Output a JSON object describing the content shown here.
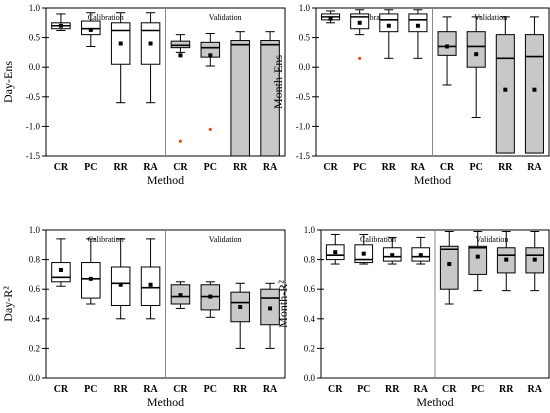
{
  "chart_data": [
    {
      "type": "box",
      "ylabel": "Day-Ens",
      "xlabel": "Method",
      "ylim": [
        -1.5,
        1.0
      ],
      "yticks": [
        -1.5,
        -1.0,
        -0.5,
        0.0,
        0.5,
        1.0
      ],
      "group_labels": [
        "Calibration",
        "Validation"
      ],
      "categories": [
        "CR",
        "PC",
        "RR",
        "RA",
        "CR",
        "PC",
        "RR",
        "RA"
      ],
      "boxes": [
        {
          "group": "Calibration",
          "category": "CR",
          "min": 0.62,
          "q1": 0.65,
          "median": 0.7,
          "q3": 0.75,
          "max": 0.9,
          "mean": 0.7,
          "outliers": []
        },
        {
          "group": "Calibration",
          "category": "PC",
          "min": 0.35,
          "q1": 0.55,
          "median": 0.65,
          "q3": 0.78,
          "max": 0.92,
          "mean": 0.63,
          "outliers": []
        },
        {
          "group": "Calibration",
          "category": "RR",
          "min": -0.6,
          "q1": 0.05,
          "median": 0.62,
          "q3": 0.75,
          "max": 0.92,
          "mean": 0.4,
          "outliers": []
        },
        {
          "group": "Calibration",
          "category": "RA",
          "min": -0.6,
          "q1": 0.05,
          "median": 0.62,
          "q3": 0.75,
          "max": 0.92,
          "mean": 0.4,
          "outliers": []
        },
        {
          "group": "Validation",
          "category": "CR",
          "min": 0.25,
          "q1": 0.33,
          "median": 0.37,
          "q3": 0.44,
          "max": 0.55,
          "mean": 0.2,
          "outliers": [
            -1.25
          ]
        },
        {
          "group": "Validation",
          "category": "PC",
          "min": 0.02,
          "q1": 0.17,
          "median": 0.33,
          "q3": 0.42,
          "max": 0.57,
          "mean": 0.2,
          "outliers": [
            -1.05
          ]
        },
        {
          "group": "Validation",
          "category": "RR",
          "min": -1.5,
          "q1": -1.5,
          "median": 0.38,
          "q3": 0.45,
          "max": 0.6,
          "mean": null,
          "outliers": []
        },
        {
          "group": "Validation",
          "category": "RA",
          "min": -1.5,
          "q1": -1.5,
          "median": 0.38,
          "q3": 0.45,
          "max": 0.6,
          "mean": null,
          "outliers": []
        }
      ]
    },
    {
      "type": "box",
      "ylabel": "Month-Ens",
      "xlabel": "Method",
      "ylim": [
        -1.5,
        1.0
      ],
      "yticks": [
        -1.5,
        -1.0,
        -0.5,
        0.0,
        0.5,
        1.0
      ],
      "group_labels": [
        "Calibration",
        "Validation"
      ],
      "categories": [
        "CR",
        "PC",
        "RR",
        "RA",
        "CR",
        "PC",
        "RR",
        "RA"
      ],
      "boxes": [
        {
          "group": "Calibration",
          "category": "CR",
          "min": 0.75,
          "q1": 0.8,
          "median": 0.85,
          "q3": 0.9,
          "max": 0.95,
          "mean": 0.82,
          "outliers": []
        },
        {
          "group": "Calibration",
          "category": "PC",
          "min": 0.55,
          "q1": 0.65,
          "median": 0.85,
          "q3": 0.9,
          "max": 0.97,
          "mean": 0.75,
          "outliers": [
            0.15
          ]
        },
        {
          "group": "Calibration",
          "category": "RR",
          "min": 0.15,
          "q1": 0.6,
          "median": 0.8,
          "q3": 0.9,
          "max": 0.97,
          "mean": 0.7,
          "outliers": []
        },
        {
          "group": "Calibration",
          "category": "RA",
          "min": 0.15,
          "q1": 0.6,
          "median": 0.8,
          "q3": 0.9,
          "max": 0.97,
          "mean": 0.7,
          "outliers": []
        },
        {
          "group": "Validation",
          "category": "CR",
          "min": -0.3,
          "q1": 0.2,
          "median": 0.35,
          "q3": 0.6,
          "max": 0.85,
          "mean": 0.35,
          "outliers": []
        },
        {
          "group": "Validation",
          "category": "PC",
          "min": -0.85,
          "q1": 0.0,
          "median": 0.35,
          "q3": 0.6,
          "max": 0.85,
          "mean": 0.22,
          "outliers": []
        },
        {
          "group": "Validation",
          "category": "RR",
          "min": -1.45,
          "q1": -1.45,
          "median": 0.15,
          "q3": 0.55,
          "max": 0.85,
          "mean": -0.38,
          "outliers": []
        },
        {
          "group": "Validation",
          "category": "RA",
          "min": -1.45,
          "q1": -1.45,
          "median": 0.18,
          "q3": 0.55,
          "max": 0.85,
          "mean": -0.38,
          "outliers": []
        }
      ]
    },
    {
      "type": "box",
      "ylabel": "Day-R²",
      "xlabel": "Method",
      "ylim": [
        0.0,
        1.0
      ],
      "yticks": [
        0.0,
        0.2,
        0.4,
        0.6,
        0.8,
        1.0
      ],
      "group_labels": [
        "Calibration",
        "Validation"
      ],
      "categories": [
        "CR",
        "PC",
        "RR",
        "RA",
        "CR",
        "PC",
        "RR",
        "RA"
      ],
      "boxes": [
        {
          "group": "Calibration",
          "category": "CR",
          "min": 0.62,
          "q1": 0.65,
          "median": 0.68,
          "q3": 0.78,
          "max": 0.94,
          "mean": 0.73,
          "outliers": []
        },
        {
          "group": "Calibration",
          "category": "PC",
          "min": 0.5,
          "q1": 0.54,
          "median": 0.67,
          "q3": 0.78,
          "max": 0.94,
          "mean": 0.67,
          "outliers": []
        },
        {
          "group": "Calibration",
          "category": "RR",
          "min": 0.4,
          "q1": 0.49,
          "median": 0.64,
          "q3": 0.75,
          "max": 0.94,
          "mean": 0.63,
          "outliers": []
        },
        {
          "group": "Calibration",
          "category": "RA",
          "min": 0.4,
          "q1": 0.49,
          "median": 0.61,
          "q3": 0.75,
          "max": 0.94,
          "mean": 0.63,
          "outliers": []
        },
        {
          "group": "Validation",
          "category": "CR",
          "min": 0.47,
          "q1": 0.5,
          "median": 0.55,
          "q3": 0.63,
          "max": 0.65,
          "mean": 0.56,
          "outliers": []
        },
        {
          "group": "Validation",
          "category": "PC",
          "min": 0.41,
          "q1": 0.46,
          "median": 0.55,
          "q3": 0.63,
          "max": 0.65,
          "mean": 0.55,
          "outliers": []
        },
        {
          "group": "Validation",
          "category": "RR",
          "min": 0.2,
          "q1": 0.38,
          "median": 0.51,
          "q3": 0.58,
          "max": 0.64,
          "mean": 0.48,
          "outliers": []
        },
        {
          "group": "Validation",
          "category": "RA",
          "min": 0.2,
          "q1": 0.36,
          "median": 0.54,
          "q3": 0.6,
          "max": 0.64,
          "mean": 0.47,
          "outliers": []
        }
      ]
    },
    {
      "type": "box",
      "ylabel": "Month-R²",
      "xlabel": "Method",
      "ylim": [
        0.0,
        1.0
      ],
      "yticks": [
        0.0,
        0.2,
        0.4,
        0.6,
        0.8,
        1.0
      ],
      "group_labels": [
        "Calibration",
        "Validation"
      ],
      "categories": [
        "CR",
        "PC",
        "RR",
        "RA",
        "CR",
        "PC",
        "RR",
        "RA"
      ],
      "boxes": [
        {
          "group": "Calibration",
          "category": "CR",
          "min": 0.77,
          "q1": 0.8,
          "median": 0.83,
          "q3": 0.9,
          "max": 0.97,
          "mean": 0.85,
          "outliers": []
        },
        {
          "group": "Calibration",
          "category": "PC",
          "min": 0.77,
          "q1": 0.78,
          "median": 0.8,
          "q3": 0.9,
          "max": 0.97,
          "mean": 0.84,
          "outliers": []
        },
        {
          "group": "Calibration",
          "category": "RR",
          "min": 0.77,
          "q1": 0.79,
          "median": 0.82,
          "q3": 0.88,
          "max": 0.95,
          "mean": 0.83,
          "outliers": []
        },
        {
          "group": "Calibration",
          "category": "RA",
          "min": 0.77,
          "q1": 0.79,
          "median": 0.82,
          "q3": 0.88,
          "max": 0.95,
          "mean": 0.83,
          "outliers": []
        },
        {
          "group": "Validation",
          "category": "CR",
          "min": 0.5,
          "q1": 0.6,
          "median": 0.87,
          "q3": 0.89,
          "max": 0.99,
          "mean": 0.77,
          "outliers": []
        },
        {
          "group": "Validation",
          "category": "PC",
          "min": 0.59,
          "q1": 0.7,
          "median": 0.88,
          "q3": 0.89,
          "max": 0.99,
          "mean": 0.82,
          "outliers": []
        },
        {
          "group": "Validation",
          "category": "RR",
          "min": 0.59,
          "q1": 0.71,
          "median": 0.83,
          "q3": 0.88,
          "max": 0.99,
          "mean": 0.8,
          "outliers": []
        },
        {
          "group": "Validation",
          "category": "RA",
          "min": 0.59,
          "q1": 0.71,
          "median": 0.83,
          "q3": 0.88,
          "max": 0.99,
          "mean": 0.8,
          "outliers": []
        }
      ]
    }
  ],
  "colors": {
    "calibration_box": "#ffffff",
    "validation_box": "#c8c8c8",
    "mean_marker": "#000000",
    "outlier_marker": "#e8501a",
    "divider": "#888888"
  }
}
